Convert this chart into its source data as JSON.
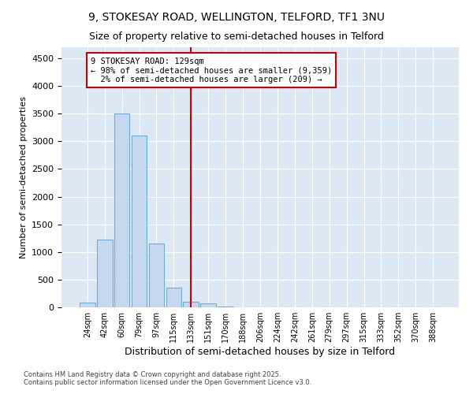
{
  "title_line1": "9, STOKESAY ROAD, WELLINGTON, TELFORD, TF1 3NU",
  "title_line2": "Size of property relative to semi-detached houses in Telford",
  "xlabel": "Distribution of semi-detached houses by size in Telford",
  "ylabel": "Number of semi-detached properties",
  "bins": [
    "24sqm",
    "42sqm",
    "60sqm",
    "79sqm",
    "97sqm",
    "115sqm",
    "133sqm",
    "151sqm",
    "170sqm",
    "188sqm",
    "206sqm",
    "224sqm",
    "242sqm",
    "261sqm",
    "279sqm",
    "297sqm",
    "315sqm",
    "333sqm",
    "352sqm",
    "370sqm",
    "388sqm"
  ],
  "bar_heights": [
    80,
    1220,
    3500,
    3100,
    1150,
    360,
    100,
    70,
    20,
    5,
    2,
    0,
    0,
    0,
    0,
    0,
    0,
    0,
    0,
    0,
    0
  ],
  "bar_color": "#c5d8f0",
  "bar_edge_color": "#6baed6",
  "property_size_bin_index": 6,
  "property_label": "9 STOKESAY ROAD: 129sqm",
  "pct_smaller": 98,
  "n_smaller": "9,359",
  "pct_larger": 2,
  "n_larger": "209",
  "vline_color": "#cc0000",
  "annotation_box_color": "#cc0000",
  "ylim": [
    0,
    4700
  ],
  "yticks": [
    0,
    500,
    1000,
    1500,
    2000,
    2500,
    3000,
    3500,
    4000,
    4500
  ],
  "bg_color": "#ffffff",
  "plot_bg_color": "#dde8f5",
  "grid_color": "#ffffff",
  "footer_line1": "Contains HM Land Registry data © Crown copyright and database right 2025.",
  "footer_line2": "Contains public sector information licensed under the Open Government Licence v3.0."
}
